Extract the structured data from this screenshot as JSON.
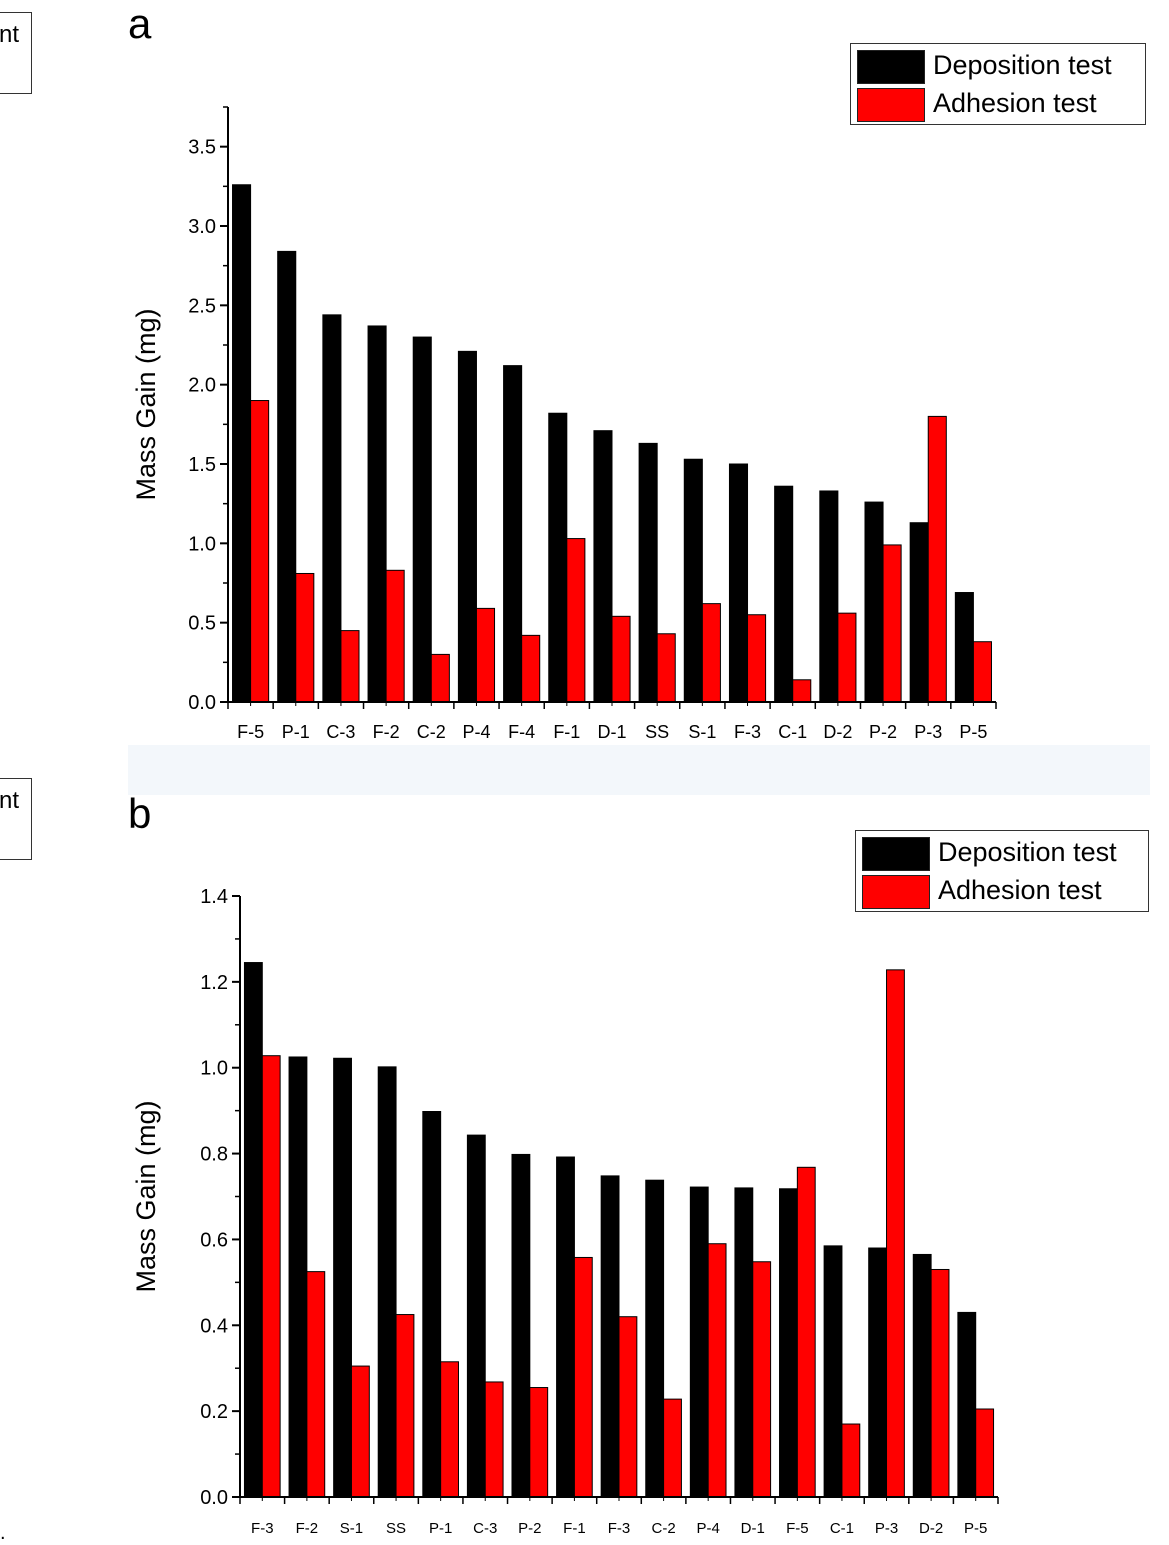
{
  "side_labels": [
    "nt",
    "nt"
  ],
  "edge_mark": ".",
  "panels": [
    {
      "letter": "a"
    },
    {
      "letter": "b"
    }
  ],
  "colors": {
    "deposition": "#000000",
    "adhesion": "#ff0000",
    "axis": "#000000"
  },
  "chart_data": [
    {
      "type": "bar",
      "title": "",
      "xlabel": "",
      "ylabel": "Mass Gain (mg)",
      "ylim": [
        0,
        3.75
      ],
      "yticks": [
        0.0,
        0.5,
        1.0,
        1.5,
        2.0,
        2.5,
        3.0,
        3.5
      ],
      "ytick_labels": [
        "0.0",
        "0.5",
        "1.0",
        "1.5",
        "2.0",
        "2.5",
        "3.0",
        "3.5"
      ],
      "categories": [
        "F-5",
        "P-1",
        "C-3",
        "F-2",
        "C-2",
        "P-4",
        "F-4",
        "F-1",
        "D-1",
        "SS",
        "S-1",
        "F-3",
        "C-1",
        "D-2",
        "P-2",
        "P-3",
        "P-5"
      ],
      "series": [
        {
          "name": "Deposition test",
          "color": "#000000",
          "values": [
            3.26,
            2.84,
            2.44,
            2.37,
            2.3,
            2.21,
            2.12,
            1.82,
            1.71,
            1.63,
            1.53,
            1.5,
            1.36,
            1.33,
            1.26,
            1.13,
            0.69
          ]
        },
        {
          "name": "Adhesion test",
          "color": "#ff0000",
          "values": [
            1.9,
            0.81,
            0.45,
            0.83,
            0.3,
            0.59,
            0.42,
            1.03,
            0.54,
            0.43,
            0.62,
            0.55,
            0.14,
            0.56,
            0.99,
            1.8,
            0.38
          ]
        }
      ],
      "legend": "top-right",
      "grid": false
    },
    {
      "type": "bar",
      "title": "",
      "xlabel": "",
      "ylabel": "Mass Gain (mg)",
      "ylim": [
        0,
        1.4
      ],
      "yticks": [
        0.0,
        0.2,
        0.4,
        0.6,
        0.8,
        1.0,
        1.2,
        1.4
      ],
      "ytick_labels": [
        "0.0",
        "0.2",
        "0.4",
        "0.6",
        "0.8",
        "1.0",
        "1.2",
        "1.4"
      ],
      "categories": [
        "F-3",
        "F-2",
        "S-1",
        "SS",
        "P-1",
        "C-3",
        "P-2",
        "F-1",
        "F-3",
        "C-2",
        "P-4",
        "D-1",
        "F-5",
        "C-1",
        "P-3",
        "D-2",
        "P-5"
      ],
      "series": [
        {
          "name": "Deposition test",
          "color": "#000000",
          "values": [
            1.245,
            1.025,
            1.022,
            1.002,
            0.898,
            0.843,
            0.798,
            0.792,
            0.748,
            0.738,
            0.722,
            0.72,
            0.718,
            0.585,
            0.58,
            0.565,
            0.43
          ]
        },
        {
          "name": "Adhesion test",
          "color": "#ff0000",
          "values": [
            1.028,
            0.525,
            0.305,
            0.425,
            0.315,
            0.268,
            0.255,
            0.558,
            0.42,
            0.228,
            0.59,
            0.548,
            0.768,
            0.17,
            1.228,
            0.53,
            0.205
          ]
        }
      ],
      "legend": "top-right",
      "grid": false
    }
  ]
}
